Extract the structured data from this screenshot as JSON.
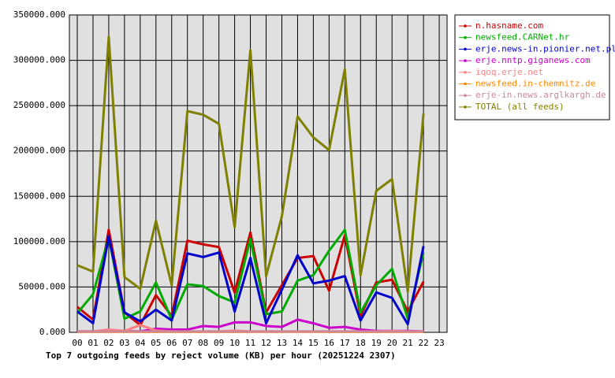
{
  "chart_data": {
    "type": "line",
    "title": "Top 7 outgoing feeds by reject volume (KB) per hour (20251224 2307)",
    "categories": [
      "00",
      "01",
      "02",
      "03",
      "04",
      "05",
      "06",
      "07",
      "08",
      "09",
      "10",
      "11",
      "12",
      "13",
      "14",
      "15",
      "16",
      "17",
      "18",
      "19",
      "20",
      "21",
      "22",
      "23"
    ],
    "ylim": [
      0,
      350000
    ],
    "yticks": [
      {
        "value": 0,
        "label": "0.000"
      },
      {
        "value": 50000,
        "label": "50000.000"
      },
      {
        "value": 100000,
        "label": "100000.000"
      },
      {
        "value": 150000,
        "label": "150000.000"
      },
      {
        "value": 200000,
        "label": "200000.000"
      },
      {
        "value": 250000,
        "label": "250000.000"
      },
      {
        "value": 300000,
        "label": "300000.000"
      },
      {
        "value": 350000,
        "label": "350000.000"
      }
    ],
    "grid": true,
    "legend": "right",
    "series": [
      {
        "name": "n.hasname.com",
        "color": "#cc0000",
        "values": [
          28000,
          14000,
          113000,
          22000,
          8000,
          41000,
          18000,
          101000,
          97000,
          94000,
          44000,
          110000,
          22000,
          52000,
          82000,
          84000,
          46000,
          107000,
          18000,
          55000,
          58000,
          23000,
          56000,
          null
        ]
      },
      {
        "name": "newsfeed.CARNet.hr",
        "color": "#00aa00",
        "values": [
          21000,
          42000,
          105000,
          15000,
          23000,
          55000,
          14000,
          53000,
          51000,
          40000,
          33000,
          103000,
          20000,
          23000,
          57000,
          63000,
          90000,
          113000,
          22000,
          52000,
          70000,
          15000,
          88000,
          null
        ]
      },
      {
        "name": "erje.news-in.pionier.net.pl",
        "color": "#0000cc",
        "values": [
          23000,
          10000,
          106000,
          22000,
          12000,
          25000,
          13000,
          87000,
          83000,
          88000,
          23000,
          82000,
          10000,
          47000,
          85000,
          54000,
          57000,
          62000,
          13000,
          44000,
          38000,
          9000,
          95000,
          null
        ]
      },
      {
        "name": "erje.nntp.giganews.com",
        "color": "#cc00cc",
        "values": [
          1000,
          1000,
          2000,
          1500,
          1000,
          4000,
          3000,
          3000,
          7000,
          6000,
          11000,
          11000,
          7000,
          6000,
          14000,
          10000,
          5000,
          6000,
          3000,
          1500,
          1500,
          1500,
          1000,
          null
        ]
      },
      {
        "name": "iqoq.erje.net",
        "color": "#ff8080",
        "values": [
          1000,
          1000,
          3000,
          1500,
          8000,
          2000,
          1000,
          1000,
          1000,
          1000,
          2000,
          1000,
          1000,
          1000,
          1000,
          1000,
          1000,
          1000,
          1000,
          1000,
          1500,
          1000,
          1000,
          null
        ]
      },
      {
        "name": "newsfeed.in-chemnitz.de",
        "color": "#ff8800",
        "values": [
          500,
          500,
          500,
          500,
          500,
          500,
          500,
          500,
          500,
          500,
          500,
          500,
          500,
          500,
          500,
          500,
          500,
          500,
          500,
          500,
          500,
          500,
          500,
          null
        ]
      },
      {
        "name": "erje-in.news.arglkargh.de",
        "color": "#cc8899",
        "values": [
          1000,
          1000,
          1000,
          1000,
          1000,
          1000,
          1000,
          1000,
          1000,
          1000,
          1000,
          1000,
          1000,
          1000,
          1000,
          1000,
          1000,
          1000,
          1000,
          1000,
          1000,
          1000,
          1000,
          null
        ]
      },
      {
        "name": "TOTAL (all feeds)",
        "color": "#808000",
        "values": [
          74000,
          67000,
          326000,
          61000,
          48000,
          123000,
          52000,
          244000,
          240000,
          230000,
          116000,
          311000,
          62000,
          128000,
          238000,
          215000,
          201000,
          290000,
          63000,
          156000,
          169000,
          45000,
          241000,
          null
        ]
      }
    ]
  }
}
